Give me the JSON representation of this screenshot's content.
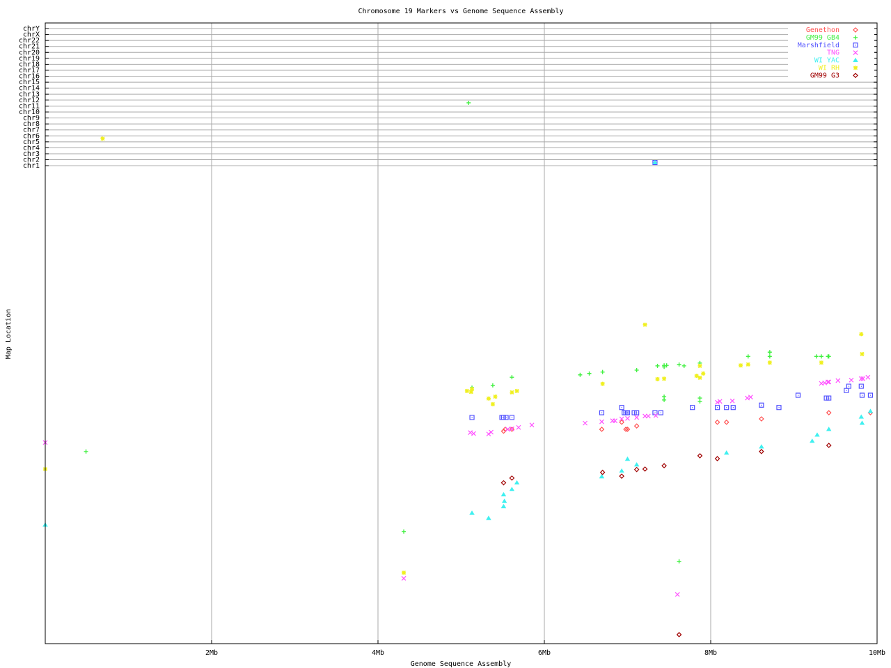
{
  "chart_data": {
    "type": "scatter",
    "title": "Chromosome 19 Markers vs Genome Sequence Assembly",
    "xlabel": "Genome Sequence Assembly",
    "ylabel": "Map Location",
    "xlim": [
      0,
      10
    ],
    "x_unit": "Mb",
    "x_ticks": [
      {
        "value": 2,
        "label": "2Mb"
      },
      {
        "value": 4,
        "label": "4Mb"
      },
      {
        "value": 6,
        "label": "6Mb"
      },
      {
        "value": 8,
        "label": "8Mb"
      },
      {
        "value": 10,
        "label": "10Mb"
      }
    ],
    "chromosome_rows": [
      "chrY",
      "chrX",
      "chr22",
      "chr21",
      "chr20",
      "chr19",
      "chr18",
      "chr17",
      "chr16",
      "chr15",
      "chr14",
      "chr13",
      "chr12",
      "chr11",
      "chr10",
      "chr9",
      "chr8",
      "chr7",
      "chr6",
      "chr5",
      "chr4",
      "chr3",
      "chr2",
      "chr1"
    ],
    "map_location_scale": "unlabeled, 0-100 relative",
    "grid": true,
    "legend_position": "top-right",
    "series": [
      {
        "name": "Genethon",
        "color": "#ff5050",
        "marker": "diamond",
        "points": [
          [
            5.51,
            44.9
          ],
          [
            5.53,
            45.3
          ],
          [
            5.61,
            45.3
          ],
          [
            6.69,
            45.3
          ],
          [
            6.93,
            46.8
          ],
          [
            6.98,
            45.3
          ],
          [
            7.0,
            45.3
          ],
          [
            7.11,
            46.0
          ],
          [
            8.08,
            46.8
          ],
          [
            8.19,
            46.8
          ],
          [
            8.61,
            47.5
          ],
          [
            9.42,
            48.8
          ],
          [
            9.92,
            48.8
          ]
        ],
        "other_chromosome": []
      },
      {
        "name": "GM99 GB4",
        "color": "#40f040",
        "marker": "plus",
        "points": [
          [
            0.49,
            40.6
          ],
          [
            4.31,
            23.7
          ],
          [
            5.13,
            54.1
          ],
          [
            5.38,
            54.6
          ],
          [
            5.61,
            56.3
          ],
          [
            6.43,
            56.8
          ],
          [
            6.54,
            57.1
          ],
          [
            6.7,
            57.4
          ],
          [
            7.11,
            57.8
          ],
          [
            7.36,
            58.7
          ],
          [
            7.44,
            58.8
          ],
          [
            7.44,
            58.5
          ],
          [
            7.47,
            58.8
          ],
          [
            7.62,
            59.0
          ],
          [
            7.68,
            58.7
          ],
          [
            7.87,
            59.3
          ],
          [
            7.44,
            52.2
          ],
          [
            7.44,
            51.5
          ],
          [
            7.87,
            51.9
          ],
          [
            7.87,
            51.2
          ],
          [
            7.62,
            17.4
          ],
          [
            8.45,
            60.7
          ],
          [
            8.71,
            61.6
          ],
          [
            8.71,
            60.7
          ],
          [
            9.27,
            60.7
          ],
          [
            9.33,
            60.7
          ],
          [
            9.41,
            60.7
          ],
          [
            9.42,
            60.7
          ]
        ],
        "other_chromosome": [
          [
            5.09,
            "chr12"
          ]
        ]
      },
      {
        "name": "Marshfield",
        "color": "#5050ff",
        "marker": "square",
        "points": [
          [
            5.13,
            47.8
          ],
          [
            5.49,
            47.8
          ],
          [
            5.51,
            47.8
          ],
          [
            5.54,
            47.8
          ],
          [
            5.61,
            47.8
          ],
          [
            6.69,
            48.8
          ],
          [
            6.93,
            49.9
          ],
          [
            6.96,
            48.8
          ],
          [
            6.98,
            48.8
          ],
          [
            7.0,
            48.8
          ],
          [
            7.08,
            48.8
          ],
          [
            7.11,
            48.8
          ],
          [
            7.33,
            48.8
          ],
          [
            7.4,
            48.8
          ],
          [
            7.78,
            49.9
          ],
          [
            8.08,
            49.9
          ],
          [
            8.19,
            49.9
          ],
          [
            8.27,
            49.9
          ],
          [
            8.61,
            50.4
          ],
          [
            8.82,
            49.9
          ],
          [
            9.05,
            52.5
          ],
          [
            9.39,
            51.9
          ],
          [
            9.42,
            51.9
          ],
          [
            9.63,
            53.5
          ],
          [
            9.66,
            54.4
          ],
          [
            9.81,
            54.4
          ],
          [
            9.82,
            52.5
          ],
          [
            9.92,
            52.5
          ]
        ],
        "other_chromosome": [
          [
            7.33,
            "chr2"
          ]
        ]
      },
      {
        "name": "TNG",
        "color": "#ff50ff",
        "marker": "cross",
        "points": [
          [
            0,
            42.5
          ],
          [
            4.31,
            13.8
          ],
          [
            5.11,
            44.6
          ],
          [
            5.15,
            44.4
          ],
          [
            5.33,
            44.3
          ],
          [
            5.36,
            44.7
          ],
          [
            5.56,
            45.3
          ],
          [
            5.61,
            45.4
          ],
          [
            5.69,
            45.7
          ],
          [
            5.85,
            46.2
          ],
          [
            6.49,
            46.6
          ],
          [
            6.69,
            46.9
          ],
          [
            6.82,
            47.1
          ],
          [
            6.85,
            47.1
          ],
          [
            6.93,
            47.5
          ],
          [
            7.0,
            47.6
          ],
          [
            7.11,
            47.8
          ],
          [
            7.21,
            48.1
          ],
          [
            7.25,
            48.1
          ],
          [
            7.34,
            48.2
          ],
          [
            7.6,
            10.4
          ],
          [
            8.08,
            51.0
          ],
          [
            8.11,
            51.2
          ],
          [
            8.26,
            51.3
          ],
          [
            8.44,
            51.9
          ],
          [
            8.48,
            52.1
          ],
          [
            9.33,
            55.0
          ],
          [
            9.37,
            55.1
          ],
          [
            9.41,
            55.3
          ],
          [
            9.42,
            55.3
          ],
          [
            9.53,
            55.6
          ],
          [
            9.69,
            55.7
          ],
          [
            9.81,
            56.0
          ],
          [
            9.83,
            56.0
          ],
          [
            9.89,
            56.3
          ]
        ],
        "other_chromosome": []
      },
      {
        "name": "WI YAC",
        "color": "#40f0f0",
        "marker": "triangle",
        "points": [
          [
            0,
            25.1
          ],
          [
            5.13,
            27.6
          ],
          [
            5.33,
            26.5
          ],
          [
            5.51,
            29.0
          ],
          [
            5.52,
            30.1
          ],
          [
            5.51,
            31.5
          ],
          [
            5.61,
            32.6
          ],
          [
            5.67,
            34.0
          ],
          [
            6.69,
            35.3
          ],
          [
            6.93,
            36.5
          ],
          [
            7.0,
            39.0
          ],
          [
            7.11,
            37.8
          ],
          [
            8.19,
            40.3
          ],
          [
            8.61,
            41.6
          ],
          [
            9.22,
            42.8
          ],
          [
            9.28,
            44.1
          ],
          [
            9.42,
            45.3
          ],
          [
            9.81,
            47.9
          ],
          [
            9.82,
            46.6
          ],
          [
            9.92,
            49.1
          ]
        ],
        "other_chromosome": [
          [
            7.33,
            "chr2"
          ]
        ]
      },
      {
        "name": "WI RH",
        "color": "#f0f020",
        "marker": "asterisk",
        "points": [
          [
            0,
            36.9
          ],
          [
            4.31,
            15.0
          ],
          [
            5.07,
            53.4
          ],
          [
            5.13,
            53.8
          ],
          [
            5.12,
            53.2
          ],
          [
            5.33,
            51.8
          ],
          [
            5.41,
            52.2
          ],
          [
            5.38,
            50.6
          ],
          [
            5.61,
            53.1
          ],
          [
            5.67,
            53.4
          ],
          [
            6.7,
            54.9
          ],
          [
            7.21,
            67.4
          ],
          [
            7.36,
            55.9
          ],
          [
            7.44,
            56.0
          ],
          [
            7.83,
            56.6
          ],
          [
            7.87,
            58.7
          ],
          [
            7.87,
            56.2
          ],
          [
            7.91,
            57.1
          ],
          [
            8.36,
            58.8
          ],
          [
            8.45,
            59.0
          ],
          [
            8.71,
            59.4
          ],
          [
            9.33,
            59.4
          ],
          [
            9.81,
            65.4
          ],
          [
            9.82,
            61.2
          ]
        ],
        "other_chromosome": [
          [
            0.69,
            "chr6"
          ]
        ]
      },
      {
        "name": "GM99 G3",
        "color": "#a00000",
        "marker": "diamond",
        "points": [
          [
            5.51,
            34.0
          ],
          [
            5.61,
            35.0
          ],
          [
            6.7,
            36.2
          ],
          [
            6.93,
            35.4
          ],
          [
            7.11,
            36.8
          ],
          [
            7.21,
            36.9
          ],
          [
            7.44,
            37.6
          ],
          [
            7.87,
            39.7
          ],
          [
            7.62,
            1.9
          ],
          [
            8.08,
            39.1
          ],
          [
            8.61,
            40.6
          ],
          [
            9.42,
            41.9
          ]
        ],
        "other_chromosome": []
      }
    ]
  }
}
